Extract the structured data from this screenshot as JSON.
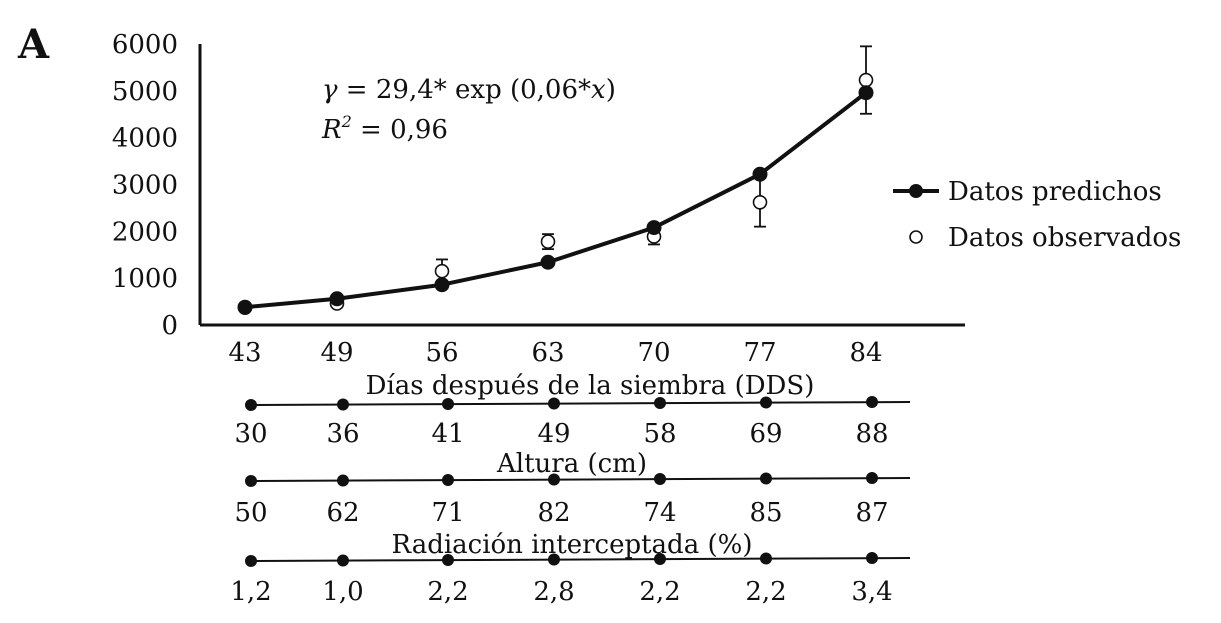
{
  "panel_label": "A",
  "chart_data": {
    "type": "line",
    "x": [
      43,
      49,
      56,
      63,
      70,
      77,
      84
    ],
    "xlabel": "Días después de la siembra (DDS)",
    "ylabel": "",
    "ylim": [
      0,
      6000
    ],
    "yticks": [
      0,
      1000,
      2000,
      3000,
      4000,
      5000,
      6000
    ],
    "grid": false,
    "legend_position": "right",
    "series": [
      {
        "name": "Datos predichos",
        "style": "line-filled-marker",
        "values": [
          380,
          560,
          860,
          1340,
          2080,
          3220,
          4960
        ]
      },
      {
        "name": "Datos observados",
        "style": "open-marker",
        "values": [
          370,
          460,
          1150,
          1780,
          1890,
          2620,
          5230
        ],
        "error": [
          0,
          0,
          250,
          160,
          170,
          520,
          720
        ]
      }
    ],
    "annotations": {
      "equation": "γ = 29,4* exp (0,06*x)",
      "equation_parts": [
        "γ",
        " = 29,4* exp (0,06*",
        "x",
        ")"
      ],
      "r2_prefix": "R",
      "r2_sup": "2",
      "r2_value": " = 0,96"
    },
    "secondary_axes": [
      {
        "label": "Altura (cm)",
        "values": [
          "30",
          "36",
          "41",
          "49",
          "58",
          "69",
          "88"
        ]
      },
      {
        "label": "Radiación interceptada (%)",
        "values": [
          "50",
          "62",
          "71",
          "82",
          "74",
          "85",
          "87"
        ]
      },
      {
        "label": "",
        "values": [
          "1,2",
          "1,0",
          "2,2",
          "2,8",
          "2,2",
          "2,2",
          "3,4"
        ]
      }
    ]
  },
  "colors": {
    "ink": "#111111",
    "background": "#ffffff"
  }
}
